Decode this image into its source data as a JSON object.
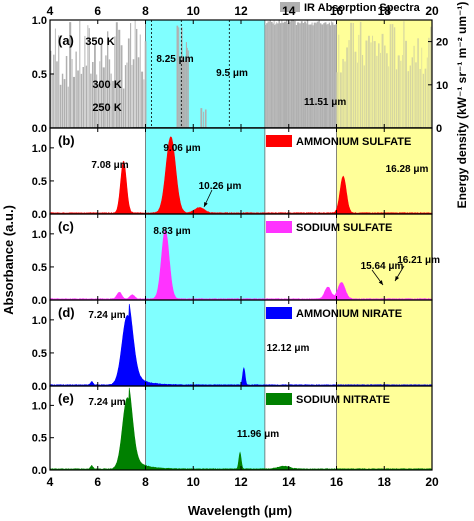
{
  "chart_data": {
    "type": "area",
    "xlabel": "Wavelength (μm)",
    "ylabel_left": "Absorbance (a.u.)",
    "ylabel_right": "Energy density (kW⁻¹ sr⁻¹ m⁻² um⁻¹)",
    "xlim": [
      4,
      20
    ],
    "x_ticks": [
      "4",
      "6",
      "8",
      "10",
      "12",
      "14",
      "16",
      "18",
      "20"
    ],
    "x_tick_values": [
      4,
      6,
      8,
      10,
      12,
      14,
      16,
      18,
      20
    ],
    "colors": {
      "window_cyan": "#80ffff",
      "window_yellow": "#ffff99",
      "ir_gray": "#b0b0b0",
      "ammonium_sulfate": "#ff0000",
      "sodium_sulfate": "#ff33ff",
      "ammonium_nitrate": "#0000ff",
      "sodium_nitrate": "#008000"
    },
    "panels": [
      {
        "id": "a",
        "label": "(a)",
        "legend": "IR Absorption  Spectra",
        "ylim": [
          0,
          1.0
        ],
        "yticks": [
          "0.0",
          "0.5",
          "1.0"
        ],
        "ylim_right": [
          0,
          25
        ],
        "yticks_right": [
          "0",
          "10",
          "20"
        ],
        "curves": [
          {
            "label": "350 K",
            "temperature": 350,
            "peak_um": 8.28
          },
          {
            "label": "300 K",
            "temperature": 300,
            "peak_um": 9.66
          },
          {
            "label": "250 K",
            "temperature": 250,
            "peak_um": 11.59
          }
        ],
        "annotations": [
          "8.25 μm",
          "9.5 μm",
          "11.51 μm"
        ],
        "dashed_lines": [
          8.25,
          9.5,
          11.51
        ]
      },
      {
        "id": "b",
        "label": "(b)",
        "legend": "AMMONIUM SULFATE",
        "ylim": [
          0,
          1.3
        ],
        "yticks": [
          "0.0",
          "0.5",
          "1.0"
        ],
        "peaks": [
          {
            "x": 7.08,
            "height": 0.78,
            "width": 0.12
          },
          {
            "x": 9.06,
            "height": 1.15,
            "width": 0.2
          },
          {
            "x": 10.26,
            "height": 0.08,
            "width": 0.2
          },
          {
            "x": 16.28,
            "height": 0.55,
            "width": 0.13
          }
        ],
        "annotations": [
          "7.08 μm",
          "9.06 μm",
          "10.26 μm",
          "16.28 μm"
        ]
      },
      {
        "id": "c",
        "label": "(c)",
        "legend": "SODIUM SULFATE",
        "ylim": [
          0,
          1.3
        ],
        "yticks": [
          "0.0",
          "0.5",
          "1.0"
        ],
        "peaks": [
          {
            "x": 6.9,
            "height": 0.1,
            "width": 0.1
          },
          {
            "x": 7.45,
            "height": 0.06,
            "width": 0.1
          },
          {
            "x": 8.83,
            "height": 1.04,
            "width": 0.16
          },
          {
            "x": 15.64,
            "height": 0.18,
            "width": 0.13
          },
          {
            "x": 16.21,
            "height": 0.25,
            "width": 0.15
          }
        ],
        "annotations": [
          "8.83 μm",
          "15.64 μm",
          "16.21 μm"
        ]
      },
      {
        "id": "d",
        "label": "(d)",
        "legend": "AMMONIUM NIRATE",
        "ylim": [
          0,
          1.3
        ],
        "yticks": [
          "0.0",
          "0.5",
          "1.0"
        ],
        "peaks": [
          {
            "x": 7.24,
            "height": 1.05,
            "width": 0.22
          },
          {
            "x": 12.12,
            "height": 0.26,
            "width": 0.05
          },
          {
            "x": 5.75,
            "height": 0.05,
            "width": 0.05
          }
        ],
        "annotations": [
          "7.24 μm",
          "12.12 μm"
        ]
      },
      {
        "id": "e",
        "label": "(e)",
        "legend": "SODIUM NITRATE",
        "ylim": [
          0,
          1.3
        ],
        "yticks": [
          "0.0",
          "0.5",
          "1.0"
        ],
        "peaks": [
          {
            "x": 7.24,
            "height": 1.1,
            "width": 0.2
          },
          {
            "x": 11.96,
            "height": 0.25,
            "width": 0.05
          },
          {
            "x": 5.75,
            "height": 0.05,
            "width": 0.05
          },
          {
            "x": 13.8,
            "height": 0.04,
            "width": 0.25
          }
        ],
        "annotations": [
          "7.24 μm",
          "11.96 μm"
        ]
      }
    ],
    "regions": [
      {
        "name": "atmospheric-window-cyan",
        "x_start": 8,
        "x_end": 13
      },
      {
        "name": "atmospheric-window-yellow",
        "x_start": 16,
        "x_end": 20
      }
    ]
  }
}
